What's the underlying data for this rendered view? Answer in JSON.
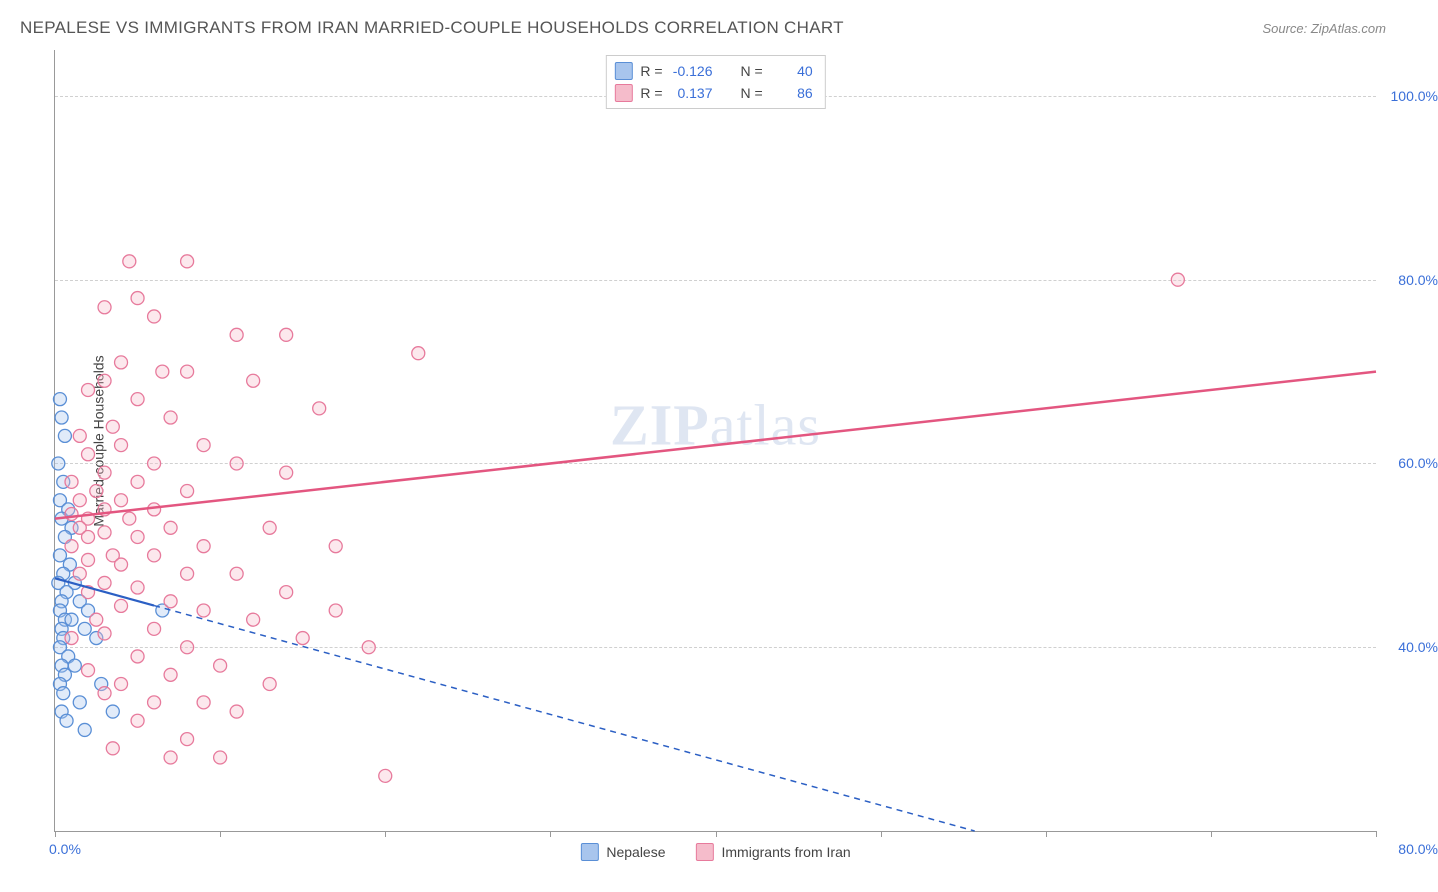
{
  "header": {
    "title": "NEPALESE VS IMMIGRANTS FROM IRAN MARRIED-COUPLE HOUSEHOLDS CORRELATION CHART",
    "source_prefix": "Source: ",
    "source_name": "ZipAtlas.com"
  },
  "watermark": {
    "zip": "ZIP",
    "rest": "atlas"
  },
  "chart": {
    "type": "scatter",
    "ylabel": "Married-couple Households",
    "xlim": [
      0,
      80
    ],
    "ylim": [
      20,
      105
    ],
    "y_gridlines": [
      40,
      60,
      80,
      100
    ],
    "ytick_labels": [
      "40.0%",
      "60.0%",
      "80.0%",
      "100.0%"
    ],
    "xtick_positions": [
      0,
      10,
      20,
      30,
      40,
      50,
      60,
      70,
      80
    ],
    "xtick_label_left": "0.0%",
    "xtick_label_right": "80.0%",
    "background_color": "#ffffff",
    "grid_color": "#d0d0d0",
    "axis_color": "#999999",
    "marker_radius": 6.5,
    "marker_fill_opacity": 0.35,
    "marker_stroke_width": 1.3,
    "series": [
      {
        "key": "nepalese",
        "label": "Nepalese",
        "color_fill": "#a8c5ed",
        "color_stroke": "#5a8fd6",
        "r_value": "-0.126",
        "n_value": "40",
        "trend": {
          "x1": 0,
          "y1": 47.5,
          "x2": 80,
          "y2": 8,
          "solid_until_x": 6,
          "stroke": "#2b5fc4",
          "width": 2.2,
          "dash": "6,5"
        },
        "points": [
          [
            0.3,
            67
          ],
          [
            0.4,
            65
          ],
          [
            0.6,
            63
          ],
          [
            0.2,
            60
          ],
          [
            0.5,
            58
          ],
          [
            0.3,
            56
          ],
          [
            0.8,
            55
          ],
          [
            0.4,
            54
          ],
          [
            1.0,
            53
          ],
          [
            0.6,
            52
          ],
          [
            0.3,
            50
          ],
          [
            0.9,
            49
          ],
          [
            0.5,
            48
          ],
          [
            0.2,
            47
          ],
          [
            1.2,
            47
          ],
          [
            0.7,
            46
          ],
          [
            0.4,
            45
          ],
          [
            1.5,
            45
          ],
          [
            0.3,
            44
          ],
          [
            2.0,
            44
          ],
          [
            0.6,
            43
          ],
          [
            1.0,
            43
          ],
          [
            0.4,
            42
          ],
          [
            1.8,
            42
          ],
          [
            0.5,
            41
          ],
          [
            0.3,
            40
          ],
          [
            2.5,
            41
          ],
          [
            0.8,
            39
          ],
          [
            0.4,
            38
          ],
          [
            1.2,
            38
          ],
          [
            0.6,
            37
          ],
          [
            0.3,
            36
          ],
          [
            2.8,
            36
          ],
          [
            0.5,
            35
          ],
          [
            1.5,
            34
          ],
          [
            0.4,
            33
          ],
          [
            3.5,
            33
          ],
          [
            0.7,
            32
          ],
          [
            1.8,
            31
          ],
          [
            6.5,
            44
          ]
        ]
      },
      {
        "key": "iran",
        "label": "Immigrants from Iran",
        "color_fill": "#f5bccb",
        "color_stroke": "#e77a9c",
        "r_value": "0.137",
        "n_value": "86",
        "trend": {
          "x1": 0,
          "y1": 54,
          "x2": 80,
          "y2": 70,
          "solid_until_x": 80,
          "stroke": "#e35680",
          "width": 2.5,
          "dash": ""
        },
        "points": [
          [
            4.5,
            82
          ],
          [
            8,
            82
          ],
          [
            5,
            78
          ],
          [
            3,
            77
          ],
          [
            68,
            80
          ],
          [
            6,
            76
          ],
          [
            11,
            74
          ],
          [
            14,
            74
          ],
          [
            22,
            72
          ],
          [
            4,
            71
          ],
          [
            8,
            70
          ],
          [
            6.5,
            70
          ],
          [
            3,
            69
          ],
          [
            12,
            69
          ],
          [
            16,
            66
          ],
          [
            2,
            68
          ],
          [
            5,
            67
          ],
          [
            7,
            65
          ],
          [
            3.5,
            64
          ],
          [
            1.5,
            63
          ],
          [
            9,
            62
          ],
          [
            4,
            62
          ],
          [
            2,
            61
          ],
          [
            6,
            60
          ],
          [
            11,
            60
          ],
          [
            14,
            59
          ],
          [
            3,
            59
          ],
          [
            1,
            58
          ],
          [
            5,
            58
          ],
          [
            8,
            57
          ],
          [
            2.5,
            57
          ],
          [
            4,
            56
          ],
          [
            1.5,
            56
          ],
          [
            6,
            55
          ],
          [
            3,
            55
          ],
          [
            1,
            54.5
          ],
          [
            2,
            54
          ],
          [
            4.5,
            54
          ],
          [
            7,
            53
          ],
          [
            1.5,
            53
          ],
          [
            3,
            52.5
          ],
          [
            5,
            52
          ],
          [
            2,
            52
          ],
          [
            9,
            51
          ],
          [
            13,
            53
          ],
          [
            17,
            51
          ],
          [
            1,
            51
          ],
          [
            3.5,
            50
          ],
          [
            6,
            50
          ],
          [
            2,
            49.5
          ],
          [
            4,
            49
          ],
          [
            8,
            48
          ],
          [
            1.5,
            48
          ],
          [
            11,
            48
          ],
          [
            3,
            47
          ],
          [
            5,
            46.5
          ],
          [
            2,
            46
          ],
          [
            14,
            46
          ],
          [
            7,
            45
          ],
          [
            4,
            44.5
          ],
          [
            9,
            44
          ],
          [
            17,
            44
          ],
          [
            2.5,
            43
          ],
          [
            12,
            43
          ],
          [
            6,
            42
          ],
          [
            3,
            41.5
          ],
          [
            1,
            41
          ],
          [
            15,
            41
          ],
          [
            19,
            40
          ],
          [
            8,
            40
          ],
          [
            5,
            39
          ],
          [
            10,
            38
          ],
          [
            2,
            37.5
          ],
          [
            7,
            37
          ],
          [
            4,
            36
          ],
          [
            13,
            36
          ],
          [
            3,
            35
          ],
          [
            9,
            34
          ],
          [
            6,
            34
          ],
          [
            11,
            33
          ],
          [
            5,
            32
          ],
          [
            8,
            30
          ],
          [
            3.5,
            29
          ],
          [
            7,
            28
          ],
          [
            10,
            28
          ],
          [
            20,
            26
          ]
        ]
      }
    ],
    "stats_legend": {
      "r_label": "R =",
      "n_label": "N ="
    },
    "bottom_legend": {
      "items": [
        "Nepalese",
        "Immigrants from Iran"
      ]
    }
  }
}
